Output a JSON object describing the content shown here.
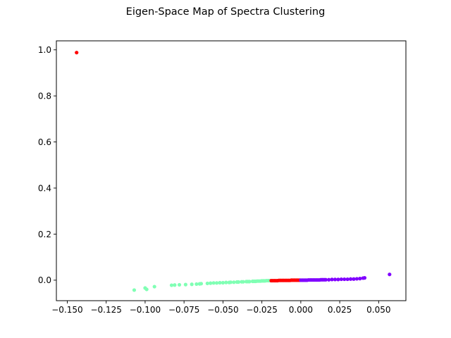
{
  "chart_data": {
    "type": "scatter",
    "title": "Eigen-Space Map of Spectra Clustering",
    "xlabel": "",
    "ylabel": "",
    "xlim": [
      -0.157,
      0.0675
    ],
    "ylim": [
      -0.089,
      1.039
    ],
    "grid": false,
    "xticks": [
      -0.15,
      -0.125,
      -0.1,
      -0.075,
      -0.05,
      -0.025,
      0.0,
      0.025,
      0.05
    ],
    "xtick_labels": [
      "−0.150",
      "−0.125",
      "−0.100",
      "−0.075",
      "−0.050",
      "−0.025",
      "0.000",
      "0.025",
      "0.050"
    ],
    "yticks": [
      0.0,
      0.2,
      0.4,
      0.6,
      0.8,
      1.0
    ],
    "ytick_labels": [
      "0.0",
      "0.2",
      "0.4",
      "0.6",
      "0.8",
      "1.0"
    ],
    "series": [
      {
        "color": "#80ffb4",
        "points": [
          [
            -0.107,
            -0.043
          ],
          [
            -0.1,
            -0.034
          ],
          [
            -0.099,
            -0.04
          ],
          [
            -0.094,
            -0.028
          ],
          [
            -0.083,
            -0.022
          ],
          [
            -0.081,
            -0.021
          ],
          [
            -0.078,
            -0.02
          ],
          [
            -0.074,
            -0.019
          ],
          [
            -0.07,
            -0.018
          ],
          [
            -0.067,
            -0.017
          ],
          [
            -0.065,
            -0.016
          ],
          [
            -0.064,
            -0.015
          ],
          [
            -0.06,
            -0.014
          ],
          [
            -0.058,
            -0.013
          ],
          [
            -0.056,
            -0.012
          ],
          [
            -0.054,
            -0.012
          ],
          [
            -0.052,
            -0.011
          ],
          [
            -0.05,
            -0.011
          ],
          [
            -0.048,
            -0.01
          ],
          [
            -0.046,
            -0.01
          ],
          [
            -0.045,
            -0.009
          ],
          [
            -0.043,
            -0.009
          ],
          [
            -0.041,
            -0.008
          ],
          [
            -0.04,
            -0.008
          ],
          [
            -0.038,
            -0.007
          ],
          [
            -0.037,
            -0.007
          ],
          [
            -0.035,
            -0.006
          ],
          [
            -0.034,
            -0.006
          ],
          [
            -0.033,
            -0.006
          ],
          [
            -0.031,
            -0.005
          ],
          [
            -0.03,
            -0.005
          ],
          [
            -0.029,
            -0.005
          ],
          [
            -0.028,
            -0.004
          ],
          [
            -0.027,
            -0.004
          ],
          [
            -0.026,
            -0.004
          ],
          [
            -0.025,
            -0.003
          ],
          [
            -0.024,
            -0.003
          ],
          [
            -0.023,
            -0.003
          ],
          [
            -0.022,
            -0.002
          ],
          [
            -0.021,
            -0.002
          ],
          [
            -0.02,
            -0.002
          ]
        ]
      },
      {
        "color": "#ff0000",
        "points": [
          [
            -0.144,
            0.988
          ],
          [
            -0.019,
            -0.002
          ],
          [
            -0.018,
            -0.002
          ],
          [
            -0.017,
            -0.002
          ],
          [
            -0.016,
            -0.002
          ],
          [
            -0.015,
            -0.002
          ],
          [
            -0.014,
            -0.001
          ],
          [
            -0.013,
            -0.001
          ],
          [
            -0.012,
            -0.001
          ],
          [
            -0.011,
            -0.001
          ],
          [
            -0.01,
            -0.001
          ],
          [
            -0.009,
            -0.001
          ],
          [
            -0.008,
            -0.001
          ],
          [
            -0.007,
            -0.001
          ],
          [
            -0.006,
            0.0
          ],
          [
            -0.005,
            0.0
          ],
          [
            -0.004,
            0.0
          ],
          [
            -0.003,
            0.0
          ],
          [
            -0.002,
            0.0
          ],
          [
            -0.001,
            0.0
          ]
        ]
      },
      {
        "color": "#8000ff",
        "points": [
          [
            0.0,
            0.0
          ],
          [
            0.001,
            0.0
          ],
          [
            0.002,
            0.0
          ],
          [
            0.003,
            0.0
          ],
          [
            0.004,
            0.0
          ],
          [
            0.005,
            0.001
          ],
          [
            0.006,
            0.001
          ],
          [
            0.007,
            0.001
          ],
          [
            0.008,
            0.001
          ],
          [
            0.009,
            0.001
          ],
          [
            0.01,
            0.001
          ],
          [
            0.011,
            0.001
          ],
          [
            0.012,
            0.001
          ],
          [
            0.013,
            0.002
          ],
          [
            0.014,
            0.002
          ],
          [
            0.015,
            0.002
          ],
          [
            0.016,
            0.002
          ],
          [
            0.018,
            0.002
          ],
          [
            0.02,
            0.003
          ],
          [
            0.022,
            0.003
          ],
          [
            0.024,
            0.003
          ],
          [
            0.026,
            0.004
          ],
          [
            0.028,
            0.004
          ],
          [
            0.03,
            0.004
          ],
          [
            0.032,
            0.005
          ],
          [
            0.034,
            0.005
          ],
          [
            0.036,
            0.006
          ],
          [
            0.038,
            0.007
          ],
          [
            0.04,
            0.009
          ],
          [
            0.041,
            0.01
          ],
          [
            0.057,
            0.025
          ]
        ]
      }
    ]
  }
}
